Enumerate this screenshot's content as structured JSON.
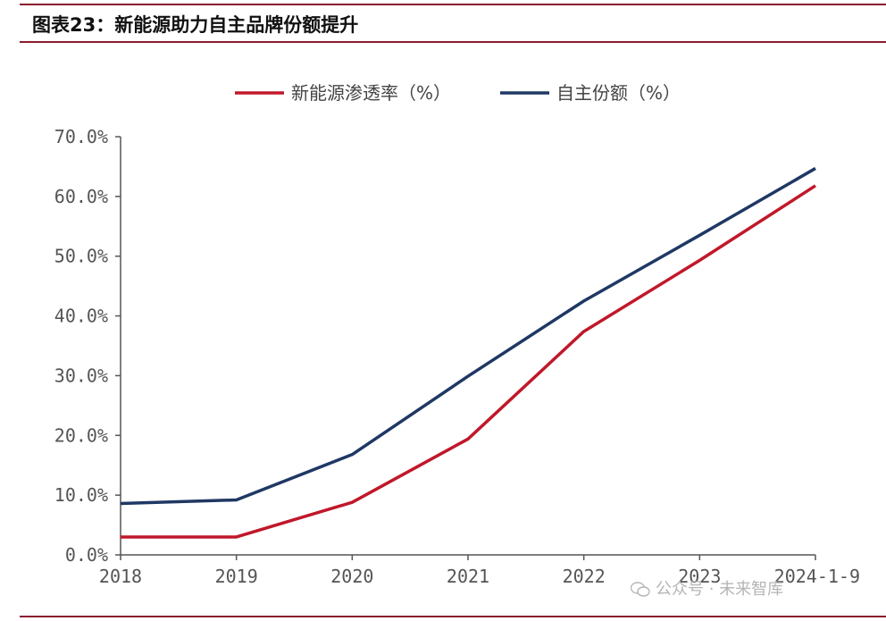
{
  "header": {
    "title": "图表23：新能源助力自主品牌份额提升"
  },
  "watermark": {
    "text": "公众号 · 未来智库",
    "icon": "wechat-icon"
  },
  "colors": {
    "rule": "#8a1c2e",
    "series_red": "#c0182a",
    "series_navy": "#1f3864",
    "axis": "#555555"
  },
  "chart_data": {
    "type": "line",
    "title": "",
    "xlabel": "",
    "ylabel": "",
    "x": [
      "2018",
      "2019",
      "2020",
      "2021",
      "2022",
      "2023",
      "2024-1-9"
    ],
    "ylim": [
      0,
      70
    ],
    "yticks": [
      "0.0%",
      "10.0%",
      "20.0%",
      "30.0%",
      "40.0%",
      "50.0%",
      "60.0%",
      "70.0%"
    ],
    "grid": false,
    "legend": "top",
    "series": [
      {
        "name": "新能源渗透率（%）",
        "color": "#c0182a",
        "values": [
          3.0,
          3.0,
          8.8,
          19.4,
          37.4,
          49.3,
          61.8
        ]
      },
      {
        "name": "自主份额（%）",
        "color": "#1f3864",
        "values": [
          8.6,
          9.2,
          16.8,
          29.9,
          42.5,
          53.5,
          64.7
        ]
      }
    ]
  }
}
